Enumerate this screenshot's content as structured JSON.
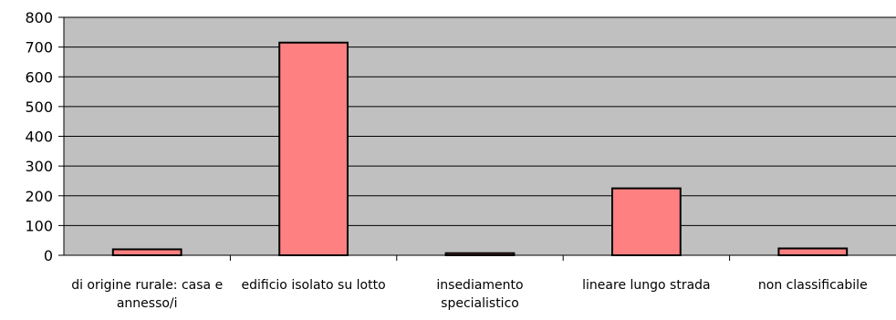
{
  "chart_data": {
    "type": "bar",
    "categories": [
      [
        "di origine rurale: casa e",
        "annesso/i"
      ],
      [
        "edificio isolato su lotto"
      ],
      [
        "insediamento",
        "specialistico"
      ],
      [
        "lineare lungo strada"
      ],
      [
        "non classificabile"
      ]
    ],
    "values": [
      20,
      715,
      7,
      225,
      23
    ],
    "ylim": [
      0,
      800
    ],
    "yticks": [
      0,
      100,
      200,
      300,
      400,
      500,
      600,
      700,
      800
    ],
    "grid": true,
    "legend": "none",
    "colors": {
      "bar_fill": "#ff8080",
      "bar_stroke": "#000000",
      "plot_background": "#c0c0c0",
      "gridline": "#000000"
    }
  }
}
